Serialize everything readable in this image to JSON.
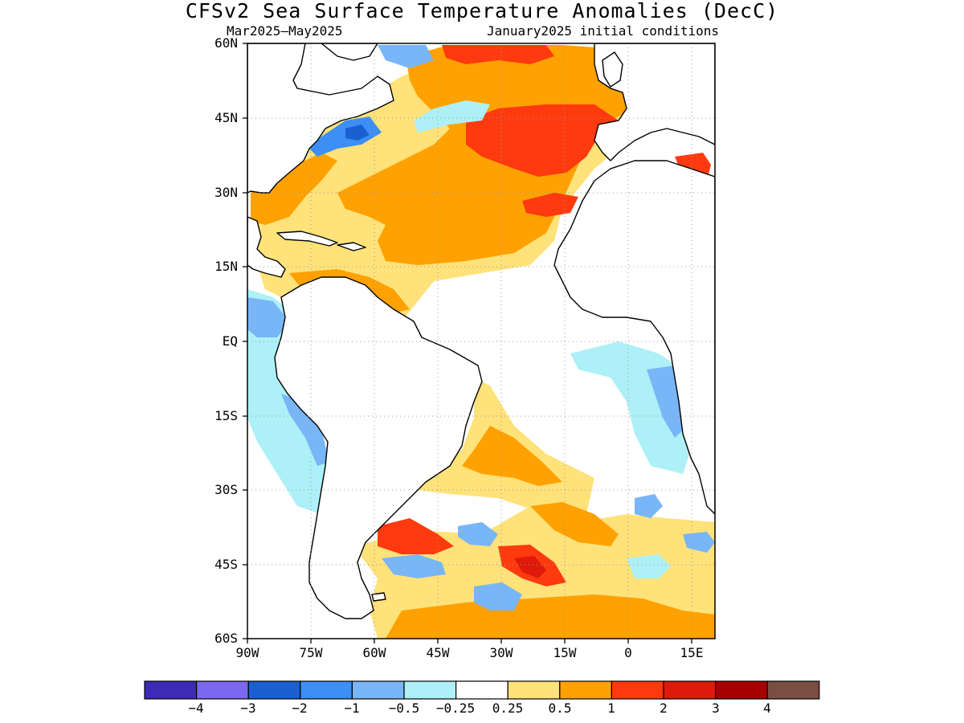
{
  "title": "CFSv2 Sea Surface Temperature Anomalies (DecC)",
  "period": "Mar2025–May2025",
  "initial_conditions": "January2025 initial conditions",
  "lat_labels": [
    "60N",
    "45N",
    "30N",
    "15N",
    "EQ",
    "15S",
    "30S",
    "45S",
    "60S"
  ],
  "lon_labels": [
    "90W",
    "75W",
    "60W",
    "45W",
    "30W",
    "15W",
    "0",
    "15E"
  ],
  "colorbar": {
    "colors": [
      "#3d2bb5",
      "#7b68ee",
      "#1a60d2",
      "#3d8ff5",
      "#78b6f7",
      "#aef0f7",
      "#ffffff",
      "#ffe27a",
      "#ffa100",
      "#ff3a0e",
      "#e01a0a",
      "#a80000",
      "#7a4e42"
    ],
    "labels": [
      "−4",
      "−3",
      "−2",
      "−1",
      "−0.5",
      "−0.25",
      "0.25",
      "0.5",
      "1",
      "2",
      "3",
      "4"
    ]
  }
}
